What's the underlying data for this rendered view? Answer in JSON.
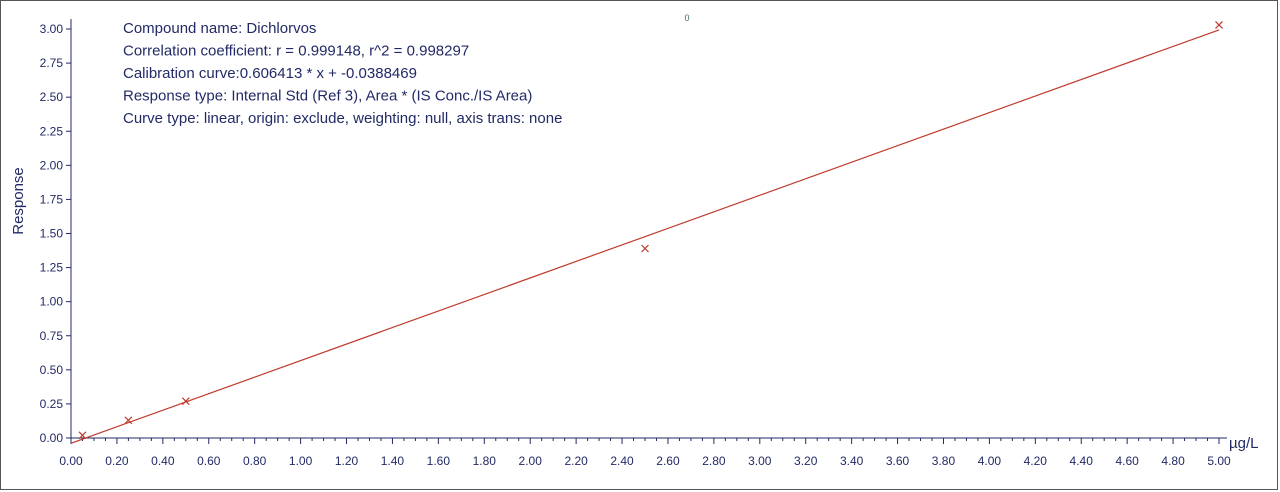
{
  "chart_data": {
    "type": "scatter",
    "title": "",
    "xlabel": "µg/L",
    "ylabel": "Response",
    "xlim": [
      0,
      5.0
    ],
    "ylim": [
      0,
      3.0
    ],
    "xticks": [
      "0.00",
      "0.20",
      "0.40",
      "0.60",
      "0.80",
      "1.00",
      "1.20",
      "1.40",
      "1.60",
      "1.80",
      "2.00",
      "2.20",
      "2.40",
      "2.60",
      "2.80",
      "3.00",
      "3.20",
      "3.40",
      "3.60",
      "3.80",
      "4.00",
      "4.20",
      "4.40",
      "4.60",
      "4.80",
      "5.00"
    ],
    "yticks": [
      "0.00",
      "0.25",
      "0.50",
      "0.75",
      "1.00",
      "1.25",
      "1.50",
      "1.75",
      "2.00",
      "2.25",
      "2.50",
      "2.75",
      "3.00"
    ],
    "grid": false,
    "points": [
      {
        "x": 0.05,
        "y": 0.02
      },
      {
        "x": 0.25,
        "y": 0.13
      },
      {
        "x": 0.5,
        "y": 0.27
      },
      {
        "x": 2.5,
        "y": 1.39
      },
      {
        "x": 5.0,
        "y": 3.03
      }
    ],
    "fit": {
      "slope": 0.606413,
      "intercept": -0.0388469,
      "x_range": [
        0,
        5.0
      ]
    },
    "annotations": [
      "Compound name: Dichlorvos",
      "Correlation coefficient: r = 0.999148, r^2 = 0.998297",
      "Calibration curve:0.606413 * x + -0.0388469",
      "Response type: Internal Std (Ref 3), Area * (IS Conc./IS Area)",
      "Curve type:  linear, origin: exclude, weighting: null, axis trans: none"
    ],
    "marker_label": "0",
    "colors": {
      "axis": "#222a66",
      "fit_line": "#c0392b",
      "points": "#c0392b",
      "text": "#222a66"
    }
  }
}
